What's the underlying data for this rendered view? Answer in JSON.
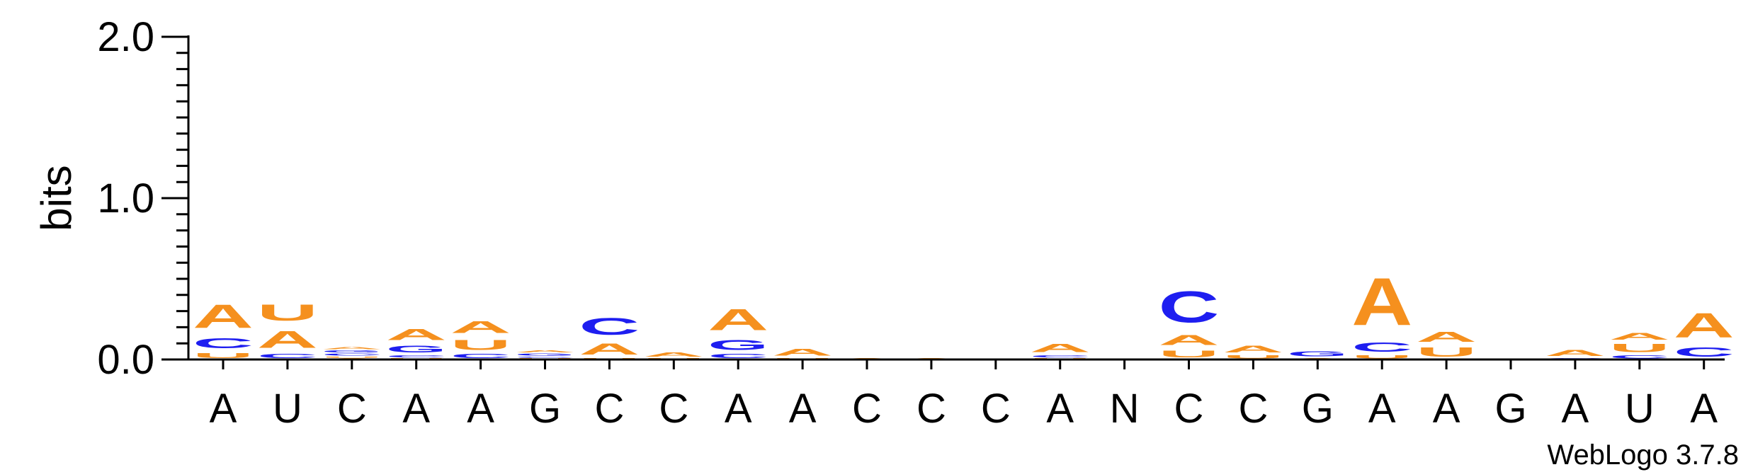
{
  "chart_data": {
    "type": "sequence-logo",
    "ylabel": "bits",
    "ylim": [
      0,
      2
    ],
    "y_ticks": [
      "0.0",
      "1.0",
      "2.0"
    ],
    "x_labels": [
      "A",
      "U",
      "C",
      "A",
      "A",
      "G",
      "C",
      "C",
      "A",
      "A",
      "C",
      "C",
      "C",
      "A",
      "N",
      "C",
      "C",
      "G",
      "A",
      "A",
      "G",
      "A",
      "U",
      "A"
    ],
    "colors": {
      "A": "#f5901e",
      "U": "#f5901e",
      "C": "#1e1ef0",
      "G": "#1e1ef0"
    },
    "stacks": [
      [
        [
          "U",
          0.05
        ],
        [
          "C",
          0.1
        ],
        [
          "A",
          0.23
        ]
      ],
      [
        [
          "C",
          0.04
        ],
        [
          "A",
          0.17
        ],
        [
          "U",
          0.16
        ]
      ],
      [
        [
          "A",
          0.01
        ],
        [
          "U",
          0.01
        ],
        [
          "C",
          0.02
        ],
        [
          "G",
          0.02
        ],
        [
          "A",
          0.02
        ]
      ],
      [
        [
          "U",
          0.01
        ],
        [
          "C",
          0.02
        ],
        [
          "G",
          0.07
        ],
        [
          "A",
          0.11
        ]
      ],
      [
        [
          "C",
          0.04
        ],
        [
          "U",
          0.1
        ],
        [
          "A",
          0.12
        ]
      ],
      [
        [
          "U",
          0.01
        ],
        [
          "C",
          0.01
        ],
        [
          "G",
          0.02
        ],
        [
          "A",
          0.02
        ]
      ],
      [
        [
          "U",
          0.01
        ],
        [
          "A",
          0.11
        ],
        [
          "C",
          0.17
        ]
      ],
      [
        [
          "U",
          0.01
        ],
        [
          "A",
          0.04
        ]
      ],
      [
        [
          "C",
          0.04
        ],
        [
          "G",
          0.1
        ],
        [
          "A",
          0.21
        ]
      ],
      [
        [
          "U",
          0.01
        ],
        [
          "A",
          0.07
        ]
      ],
      [
        [
          "A",
          0.01
        ]
      ],
      [
        [
          "A",
          0.01
        ]
      ],
      [
        [
          "A",
          0.005
        ]
      ],
      [
        [
          "U",
          0.01
        ],
        [
          "C",
          0.02
        ],
        [
          "A",
          0.08
        ]
      ],
      [],
      [
        [
          "U",
          0.07
        ],
        [
          "A",
          0.1
        ],
        [
          "C",
          0.31
        ]
      ],
      [
        [
          "U",
          0.03
        ],
        [
          "A",
          0.07
        ]
      ],
      [
        [
          "A",
          0.01
        ],
        [
          "G",
          0.05
        ]
      ],
      [
        [
          "U",
          0.03
        ],
        [
          "C",
          0.09
        ],
        [
          "A",
          0.47
        ]
      ],
      [
        [
          "U",
          0.09
        ],
        [
          "A",
          0.1
        ]
      ],
      [
        [
          "A",
          0.005
        ]
      ],
      [
        [
          "C",
          0.01
        ],
        [
          "A",
          0.06
        ]
      ],
      [
        [
          "C",
          0.03
        ],
        [
          "U",
          0.08
        ],
        [
          "A",
          0.07
        ]
      ],
      [
        [
          "C",
          0.09
        ],
        [
          "A",
          0.24
        ]
      ]
    ],
    "credit": "WebLogo 3.7.8"
  }
}
